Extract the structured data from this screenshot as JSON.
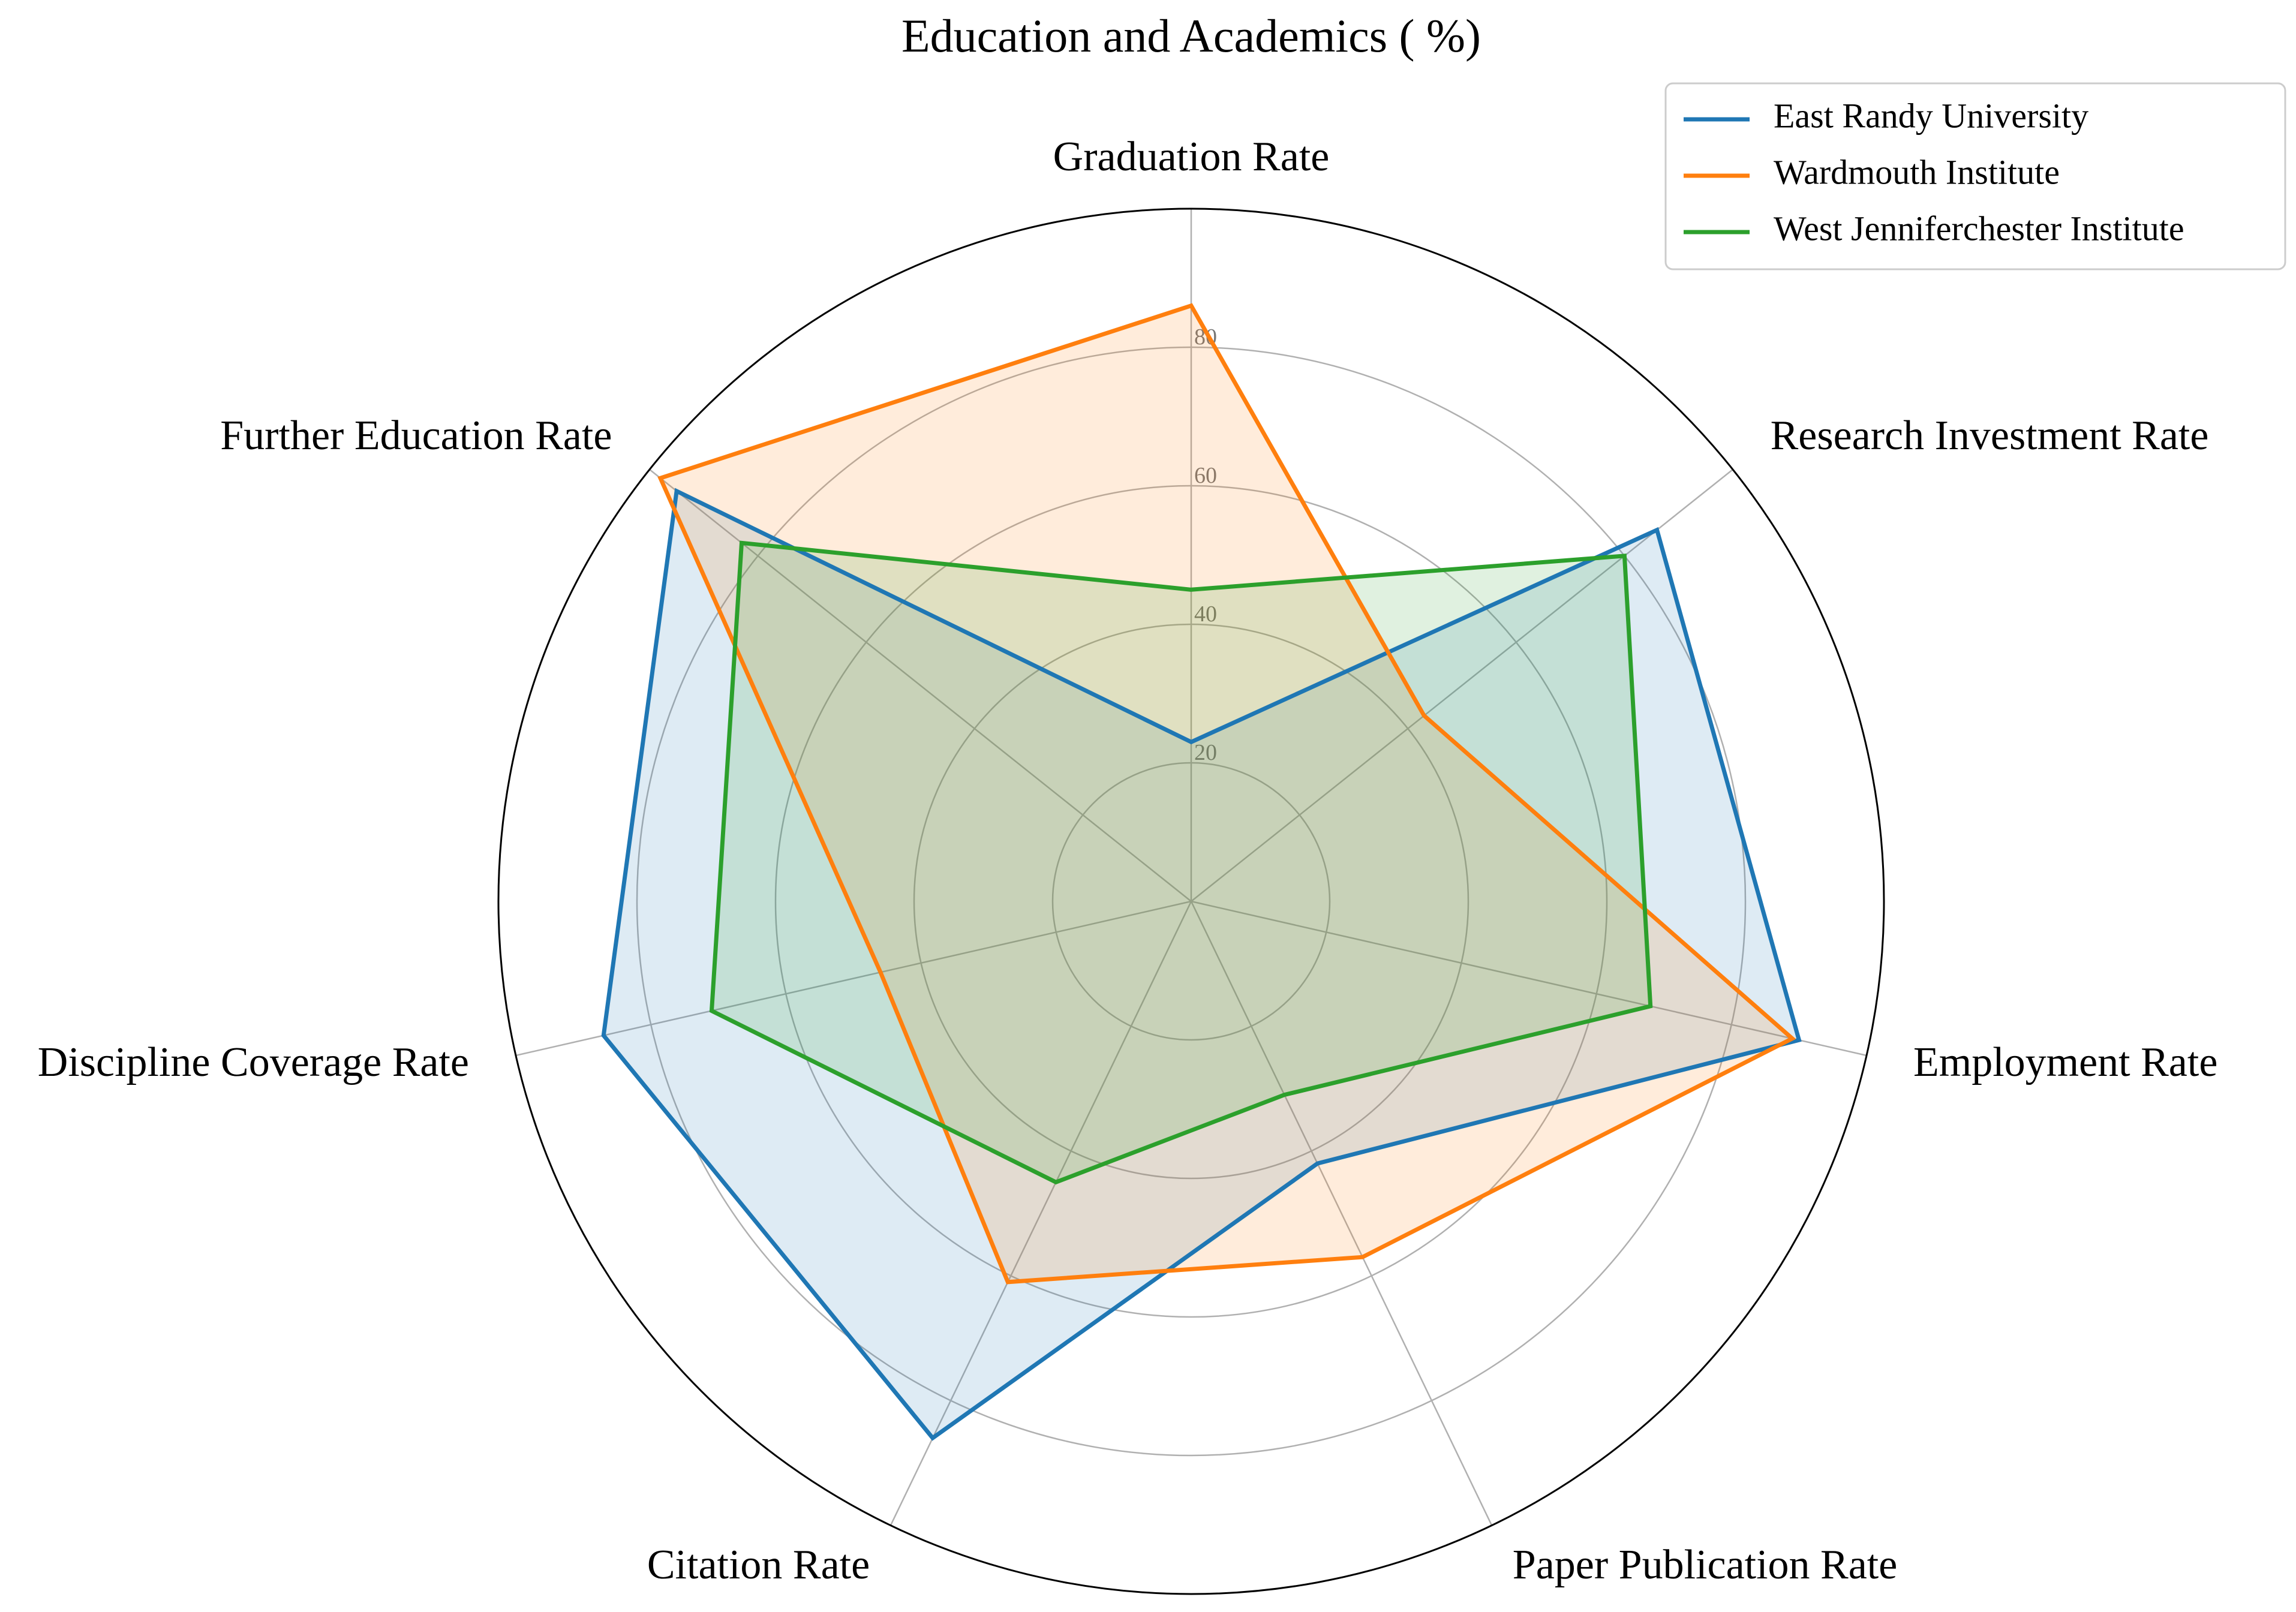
{
  "chart_data": {
    "type": "radar",
    "title": "Education and Academics ( %)",
    "categories": [
      "Graduation Rate",
      "Research Investment Rate",
      "Employment Rate",
      "Paper Publication Rate",
      "Citation Rate",
      "Discipline Coverage Rate",
      "Further Education Rate"
    ],
    "radial_ticks": [
      20,
      40,
      60,
      80
    ],
    "rlim": [
      0,
      100
    ],
    "grid": true,
    "legend_position": "top-right",
    "series": [
      {
        "name": "East Randy University",
        "color": "#1f77b4",
        "values": [
          23,
          86,
          90,
          42,
          86,
          87,
          95
        ]
      },
      {
        "name": "Wardmouth Institute",
        "color": "#ff7f0e",
        "values": [
          86,
          43,
          89,
          57,
          61,
          46,
          98
        ]
      },
      {
        "name": "West Jenniferchester Institute",
        "color": "#2ca02c",
        "values": [
          45,
          80,
          68,
          31,
          45,
          71,
          83
        ]
      }
    ]
  }
}
